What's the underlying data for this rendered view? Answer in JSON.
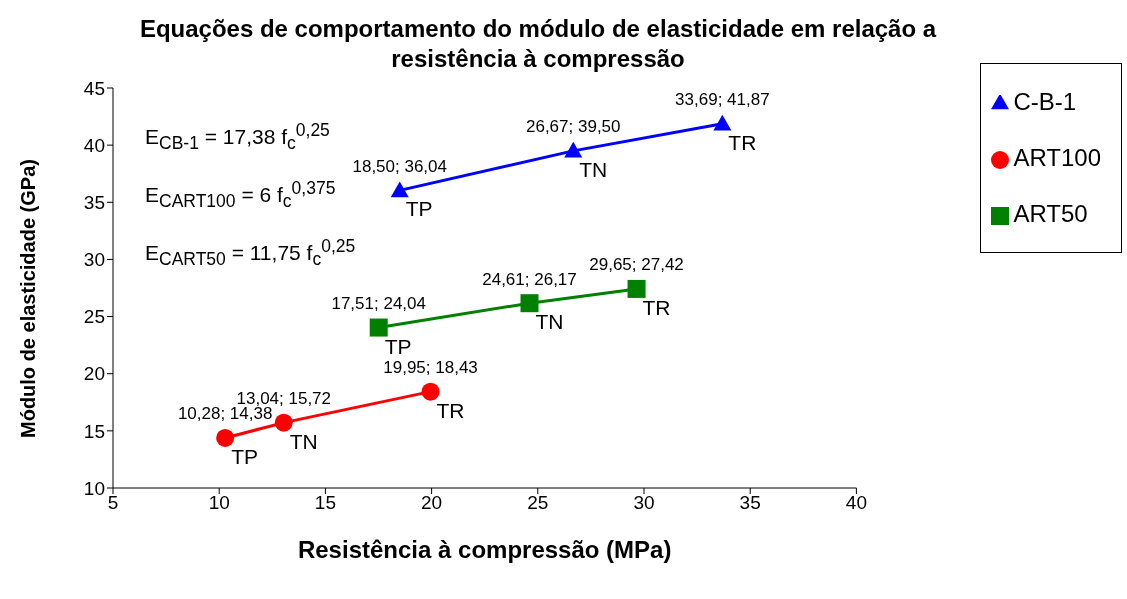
{
  "chart_data": {
    "type": "line",
    "title": "Equações de comportamento do módulo de elasticidade em relação a resistência à compressão",
    "xlabel": "Resistência à compressão (MPa)",
    "ylabel": "Módulo de elasticidade (GPa)",
    "xlim": [
      5,
      40
    ],
    "xticks": [
      5,
      10,
      15,
      20,
      25,
      30,
      35,
      40
    ],
    "ylim": [
      10,
      45
    ],
    "yticks": [
      10,
      15,
      20,
      25,
      30,
      35,
      40,
      45
    ],
    "grid": false,
    "legend": "right",
    "series": [
      {
        "name": "C-B-1",
        "color": "#0000ff",
        "marker": "triangle",
        "x": [
          18.5,
          26.67,
          33.69
        ],
        "values": [
          36.04,
          39.5,
          41.87
        ],
        "value_labels": [
          "18,50; 36,04",
          "26,67; 39,50",
          "33,69; 41,87"
        ]
      },
      {
        "name": "ART100",
        "color": "#ff0000",
        "marker": "circle",
        "x": [
          10.28,
          13.04,
          19.95
        ],
        "values": [
          14.38,
          15.72,
          18.43
        ],
        "value_labels": [
          "10,28; 14,38",
          "13,04; 15,72",
          "19,95; 18,43"
        ]
      },
      {
        "name": "ART50",
        "color": "#008000",
        "marker": "square",
        "x": [
          17.51,
          24.61,
          29.65
        ],
        "values": [
          24.04,
          26.17,
          27.42
        ],
        "value_labels": [
          "17,51; 24,04",
          "24,61; 26,17",
          "29,65; 27,42"
        ]
      }
    ],
    "annotations": [
      "E$_{CB-1}$ = 17,38 f$_{c}$$^{0,25}$",
      "E$_{CART100}$ = 6 f$_{c}$$^{0,375}$",
      "E$_{CART50}$ = 11,75 f$_{c}$$^{0,25}$",
      {
        "text": "TP",
        "x": 18.5,
        "y": 36.04
      },
      {
        "text": "TN",
        "x": 26.67,
        "y": 39.5
      },
      {
        "text": "TR",
        "x": 33.69,
        "y": 41.87
      },
      {
        "text": "TP",
        "x": 10.28,
        "y": 14.38
      },
      {
        "text": "TN",
        "x": 13.04,
        "y": 15.72
      },
      {
        "text": "TR",
        "x": 19.95,
        "y": 18.43
      },
      {
        "text": "TP",
        "x": 17.51,
        "y": 24.04
      },
      {
        "text": "TN",
        "x": 24.61,
        "y": 26.17
      },
      {
        "text": "TR",
        "x": 29.65,
        "y": 27.42
      }
    ]
  }
}
